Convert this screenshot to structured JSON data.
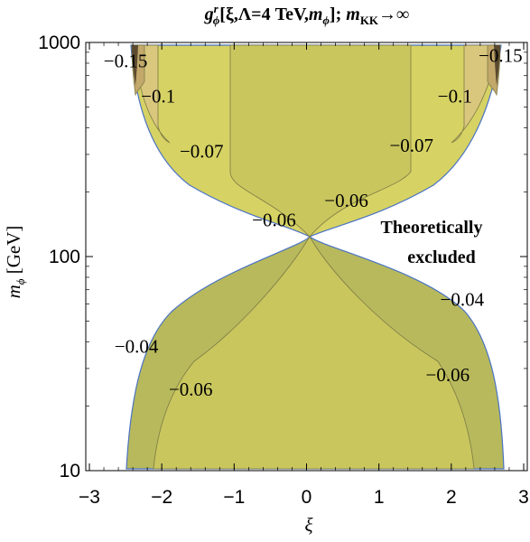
{
  "chart_data": {
    "type": "contour",
    "title_parts": {
      "g": "g",
      "g_sup": "r",
      "g_sub": "ϕ",
      "args_open": "[ξ,Λ=4 TeV,",
      "m": "m",
      "m_sub": "ϕ",
      "args_close": "]; ",
      "mkk": "m",
      "mkk_sub": "KK",
      "arrow": "→∞"
    },
    "xlabel": "ξ",
    "ylabel_parts": {
      "m": "m",
      "sub": "ϕ",
      "unit": " [GeV]"
    },
    "xlim": [
      -3.05,
      3.05
    ],
    "ylim": [
      10,
      1000
    ],
    "yscale": "log",
    "x_ticks": [
      -3,
      -2,
      -1,
      0,
      1,
      2,
      3
    ],
    "x_tick_labels": [
      "−3",
      "−2",
      "−1",
      "0",
      "1",
      "2",
      "3"
    ],
    "y_ticks": [
      10,
      100,
      1000
    ],
    "y_tick_labels": [
      "10",
      "100",
      "1000"
    ],
    "contour_labels": [
      {
        "text": "−0.15",
        "x": -2.5,
        "y": 820
      },
      {
        "text": "−0.15",
        "x": 2.68,
        "y": 870
      },
      {
        "text": "−0.1",
        "x": -2.05,
        "y": 560
      },
      {
        "text": "−0.1",
        "x": 2.05,
        "y": 560
      },
      {
        "text": "−0.07",
        "x": -1.45,
        "y": 310
      },
      {
        "text": "−0.07",
        "x": 1.45,
        "y": 330
      },
      {
        "text": "−0.06",
        "x": 0.55,
        "y": 183
      },
      {
        "text": "−0.06",
        "x": -0.45,
        "y": 148
      },
      {
        "text": "−0.04",
        "x": 2.15,
        "y": 63
      },
      {
        "text": "−0.04",
        "x": -2.35,
        "y": 38
      },
      {
        "text": "−0.06",
        "x": 1.95,
        "y": 28
      },
      {
        "text": "−0.06",
        "x": -1.6,
        "y": 24
      }
    ],
    "region_label_lines": [
      "Theoretically",
      "excluded"
    ],
    "colors": {
      "upper_fill": "#d6d264",
      "lower_fill": "#b7b95c",
      "central_fill": "#c9c65e",
      "contour_010_fill": "#d9c77e",
      "contour_015_fill": "#c2a86a",
      "edge_fill": "#5a4a30",
      "boundary": "#4a73c2",
      "contour_line": "#7d7a45"
    }
  }
}
